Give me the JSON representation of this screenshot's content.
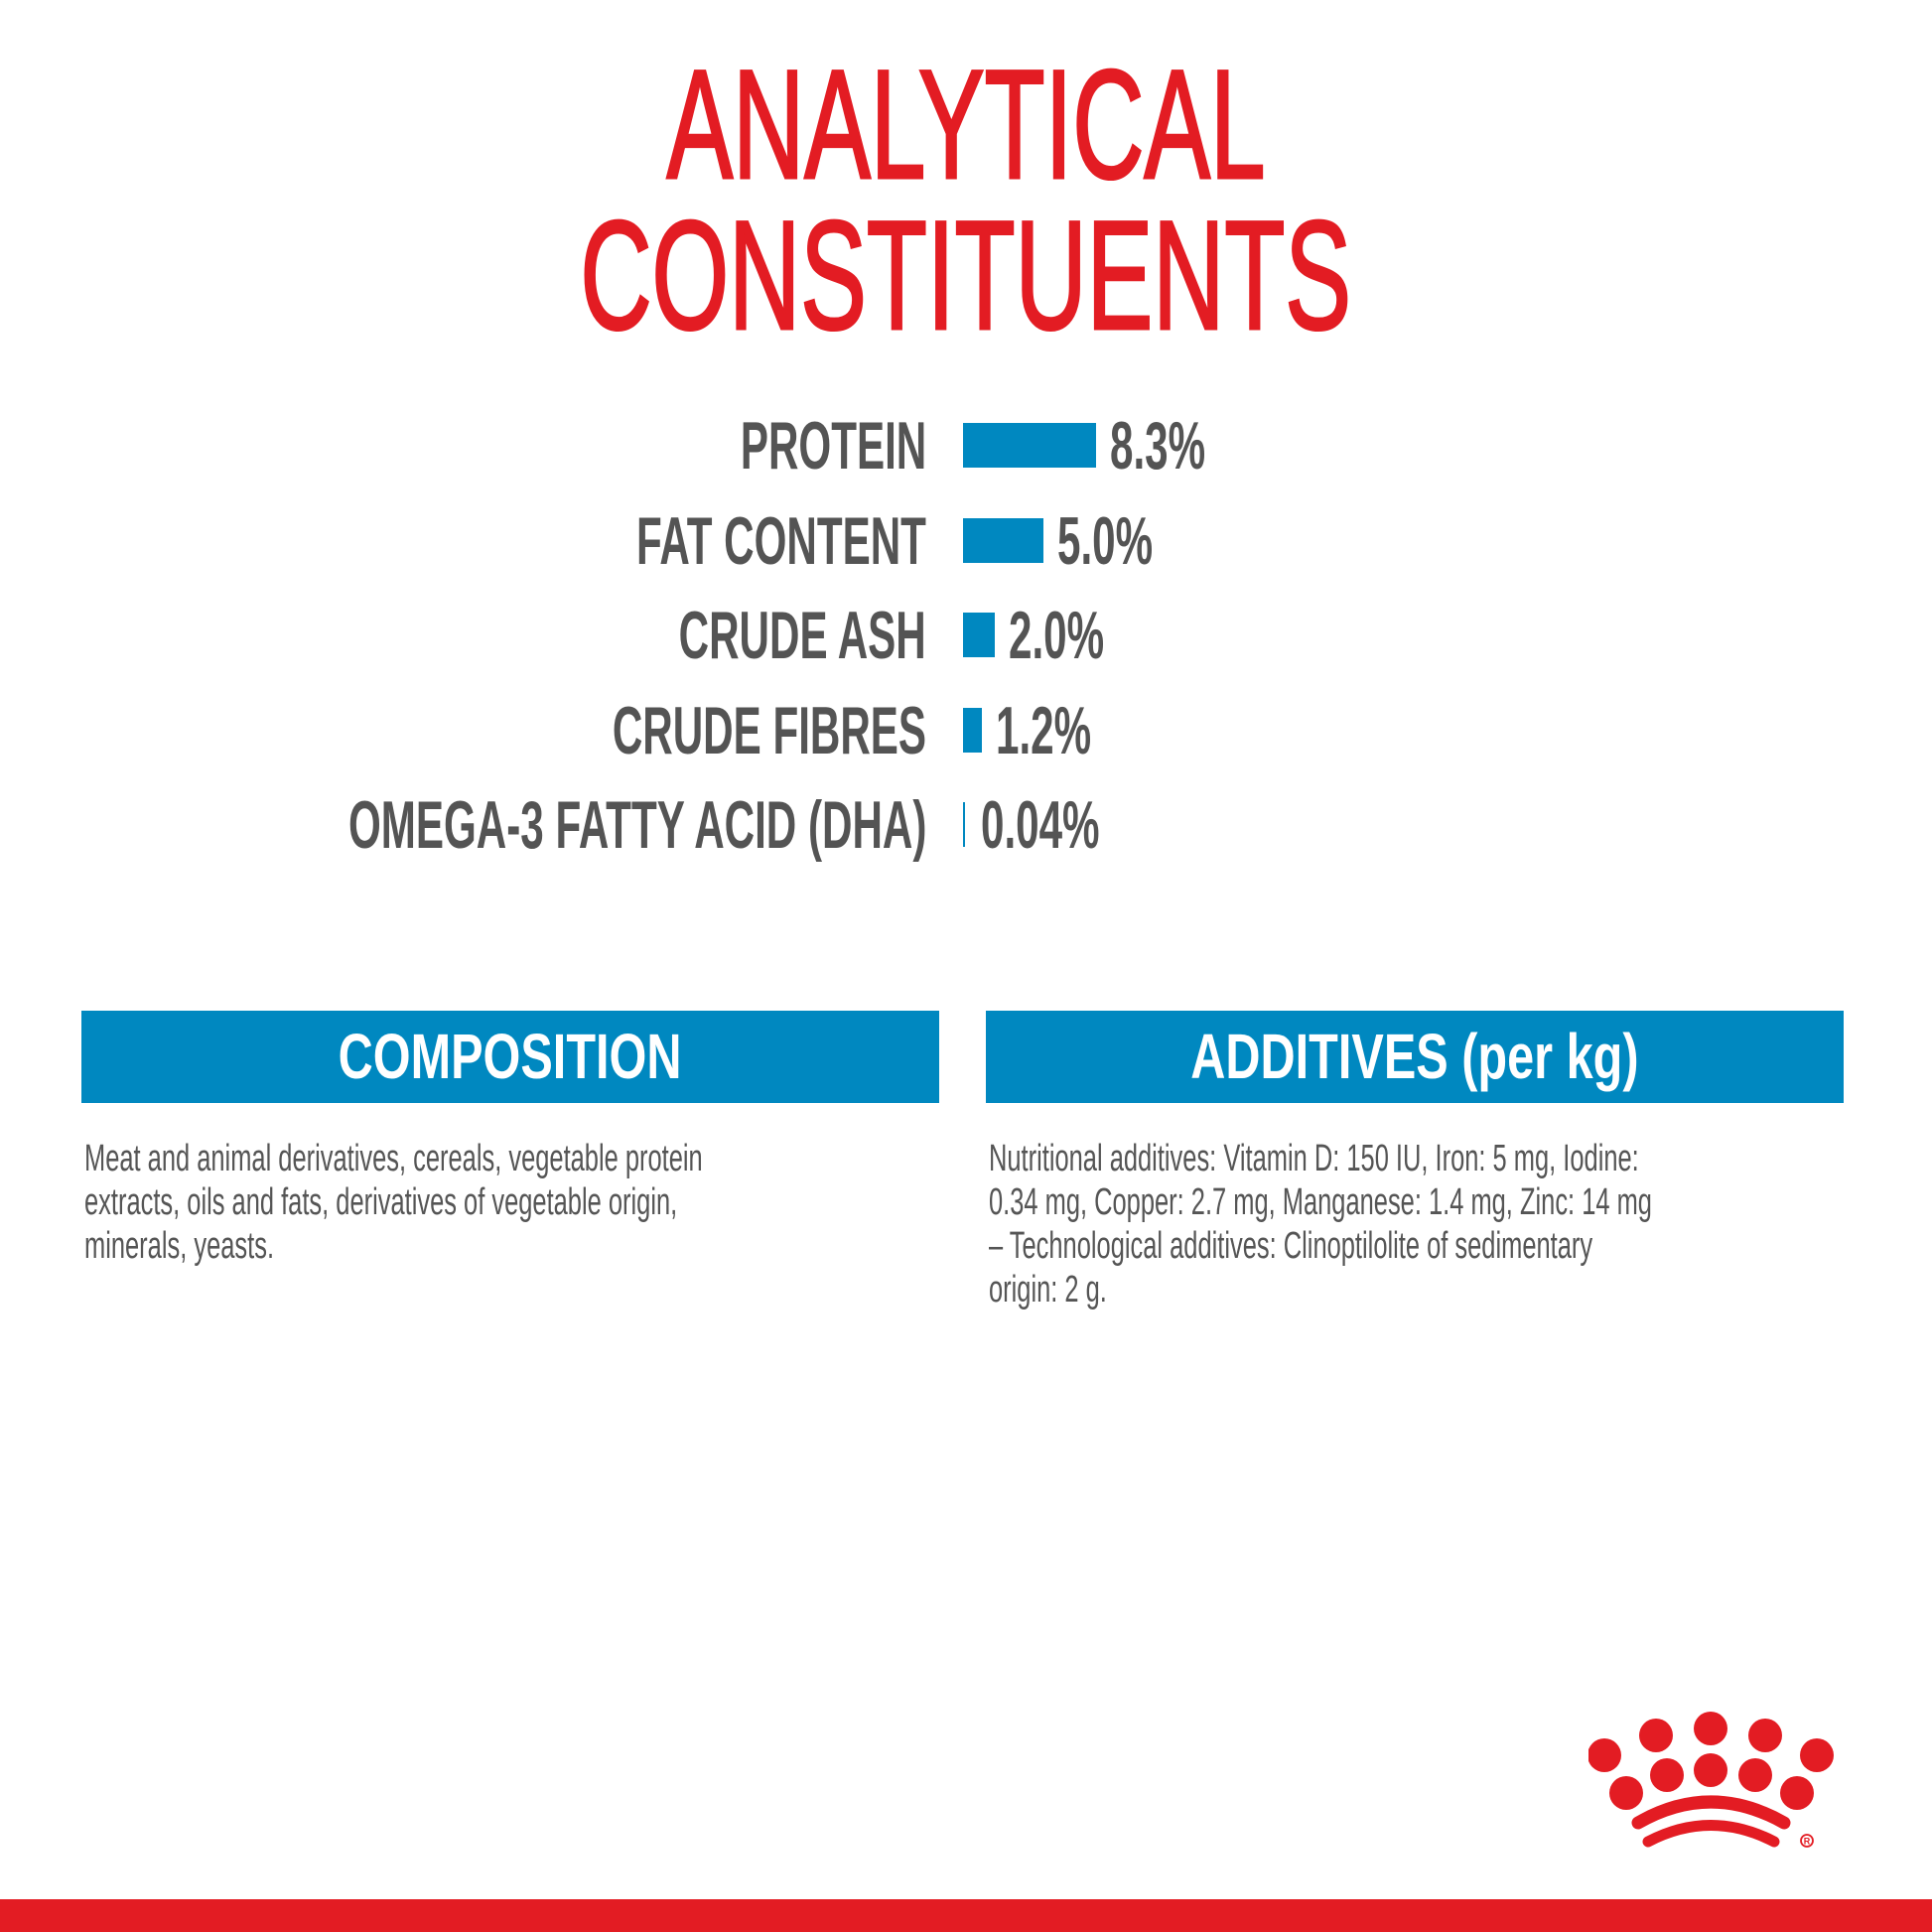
{
  "title": {
    "line1": "ANALYTICAL",
    "line2": "CONSTITUENTS"
  },
  "colors": {
    "title": "#e31c23",
    "bar": "#0088c0",
    "text": "#545454",
    "brand_red": "#e31c23"
  },
  "chart_data": {
    "type": "bar",
    "orientation": "horizontal",
    "title": "ANALYTICAL CONSTITUENTS",
    "categories": [
      "PROTEIN",
      "FAT CONTENT",
      "CRUDE ASH",
      "CRUDE FIBRES",
      "OMEGA-3 FATTY ACID (DHA)"
    ],
    "values": [
      8.3,
      5.0,
      2.0,
      1.2,
      0.04
    ],
    "value_labels": [
      "8.3%",
      "5.0%",
      "2.0%",
      "1.2%",
      "0.04%"
    ],
    "unit": "%",
    "grid": false,
    "axes_visible": false
  },
  "composition": {
    "heading": "COMPOSITION",
    "lines": [
      "Meat and animal derivatives, cereals, vegetable protein",
      "extracts, oils and fats, derivatives of vegetable origin,",
      "minerals, yeasts."
    ]
  },
  "additives": {
    "heading": "ADDITIVES (per kg)",
    "lines": [
      "Nutritional additives: Vitamin D: 150 IU, Iron: 5 mg, Iodine:",
      "0.34 mg, Copper: 2.7 mg, Manganese: 1.4 mg, Zinc: 14 mg",
      "– Technological additives: Clinoptilolite of sedimentary",
      "origin: 2 g."
    ]
  },
  "logo": {
    "icon": "royal-canin-crown-logo",
    "mark": "®"
  }
}
